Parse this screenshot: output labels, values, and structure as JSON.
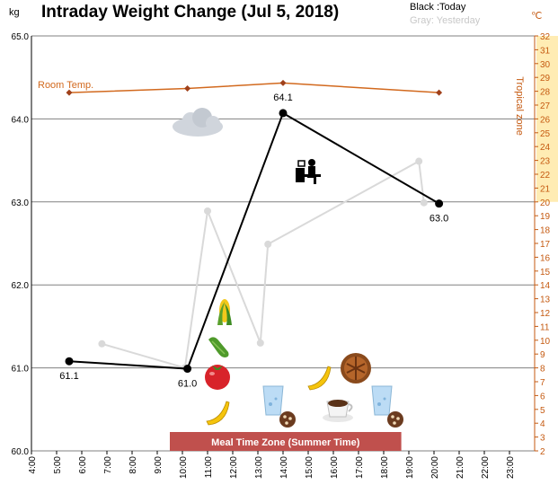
{
  "chart_data": {
    "type": "line",
    "title": "Intraday Weight Change (Jul 5, 2018)",
    "y_unit": "kg",
    "y2_unit": "℃",
    "legend": {
      "today": "Black :Today",
      "yesterday": "Gray: Yesterday"
    },
    "legend_placement": "top-right",
    "ylim": [
      60.0,
      65.0
    ],
    "y_ticks": [
      "60.0",
      "61.0",
      "62.0",
      "63.0",
      "64.0",
      "65.0"
    ],
    "y2lim": [
      2,
      32
    ],
    "y2_ticks": [
      "2",
      "3",
      "4",
      "5",
      "6",
      "7",
      "8",
      "9",
      "10",
      "11",
      "12",
      "13",
      "14",
      "15",
      "16",
      "17",
      "18",
      "19",
      "20",
      "21",
      "22",
      "23",
      "24",
      "25",
      "26",
      "27",
      "28",
      "29",
      "30",
      "31",
      "32"
    ],
    "y2_label": "Tropical zone",
    "tropical_zone_range": [
      20,
      32
    ],
    "xlim": [
      4,
      24
    ],
    "x_ticks": [
      "4:00",
      "5:00",
      "6:00",
      "7:00",
      "8:00",
      "9:00",
      "10:00",
      "11:00",
      "12:00",
      "13:00",
      "14:00",
      "15:00",
      "16:00",
      "17:00",
      "18:00",
      "19:00",
      "20:00",
      "21:00",
      "22:00",
      "23:00"
    ],
    "grid": true,
    "series": [
      {
        "name": "Black :Today",
        "color": "#000000",
        "x": [
          5.5,
          10.2,
          14.0,
          20.2
        ],
        "y": [
          61.08,
          60.99,
          64.07,
          62.98
        ],
        "labels": [
          "61.1",
          "61.0",
          "64.1",
          "63.0"
        ]
      },
      {
        "name": "Gray: Yesterday",
        "color": "#d9d9d9",
        "x": [
          6.8,
          10.1,
          11.0,
          13.1,
          13.4,
          19.4,
          19.6
        ],
        "y": [
          61.29,
          61.0,
          62.89,
          61.3,
          62.49,
          63.49,
          62.99
        ]
      },
      {
        "name": "Room Temp.",
        "color": "#d2691e",
        "axis": "y2",
        "x": [
          5.5,
          10.2,
          14.0,
          20.2
        ],
        "y": [
          27.9,
          28.2,
          28.6,
          27.9
        ]
      }
    ],
    "annotations": {
      "meal_zone_label": "Meal Time Zone (Summer Time)",
      "meal_zone_x": [
        9.5,
        18.7
      ],
      "meal_zone_color": "#c0504d"
    }
  },
  "colors": {
    "tropical": "#ffe699",
    "axis_orange": "#c55a11",
    "temp": "#d2691e",
    "grid": "#808080"
  },
  "icons": [
    "cloud-icon",
    "desk-worker-icon",
    "corn-icon",
    "cucumber-icon",
    "tomato-icon",
    "banana-icon",
    "banana-icon",
    "water-glass-icon",
    "water-glass-icon",
    "cookie-icon",
    "cookie-icon",
    "pie-icon",
    "coffee-icon"
  ]
}
